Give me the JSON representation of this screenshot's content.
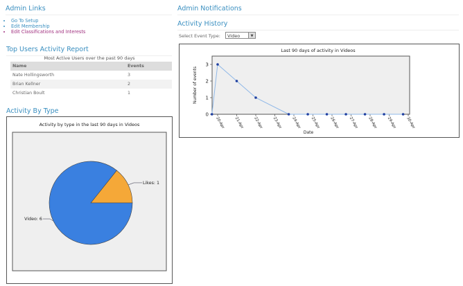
{
  "admin_links": {
    "title": "Admin Links",
    "items": [
      "Go To Setup",
      "Edit Membership",
      "Edit Classifications and Interests"
    ]
  },
  "top_users": {
    "title": "Top Users Activity Report",
    "subtitle": "Most Active Users over the past 90 days",
    "headers": [
      "Name",
      "Events"
    ],
    "rows": [
      [
        "Nate Hollingsworth",
        "3"
      ],
      [
        "Brian Kellner",
        "2"
      ],
      [
        "Christian Boult",
        "1"
      ]
    ]
  },
  "activity_by_type": {
    "title": "Activity By Type"
  },
  "admin_notifications": {
    "title": "Admin Notifications"
  },
  "activity_history": {
    "title": "Activity History",
    "select_label": "Select Event Type:",
    "select_value": "Video"
  },
  "chart_data": [
    {
      "type": "pie",
      "title": "Activity by type in the last 90 days in Videos",
      "slices": [
        {
          "label": "Video: 6",
          "name": "Video",
          "value": 6,
          "color": "#3a80e0"
        },
        {
          "label": "Likes: 1",
          "name": "Likes",
          "value": 1,
          "color": "#f5a838"
        }
      ]
    },
    {
      "type": "line",
      "title": "Last 90 days of activity in Videos",
      "xlabel": "Date",
      "ylabel": "Number of events",
      "x_tick_labels": [
        "20-Apr",
        "21-Apr",
        "22-Apr",
        "23-Apr",
        "24-Apr",
        "25-Apr",
        "26-Apr",
        "27-Apr",
        "28-Apr",
        "29-Apr",
        "30-Apr"
      ],
      "y_ticks": [
        0,
        1,
        2,
        3
      ],
      "ylim": [
        0,
        3.5
      ],
      "xlim": [
        -0.3,
        10
      ],
      "points": [
        {
          "x": -0.3,
          "y": 0
        },
        {
          "x": 0,
          "y": 3
        },
        {
          "x": 1,
          "y": 2
        },
        {
          "x": 2,
          "y": 1
        },
        {
          "x": 3.73,
          "y": 0
        },
        {
          "x": 4.73,
          "y": 0
        },
        {
          "x": 5.73,
          "y": 0
        },
        {
          "x": 6.73,
          "y": 0
        },
        {
          "x": 7.73,
          "y": 0
        },
        {
          "x": 8.73,
          "y": 0
        },
        {
          "x": 9.73,
          "y": 0
        }
      ],
      "color": "#8fb8e8"
    }
  ]
}
